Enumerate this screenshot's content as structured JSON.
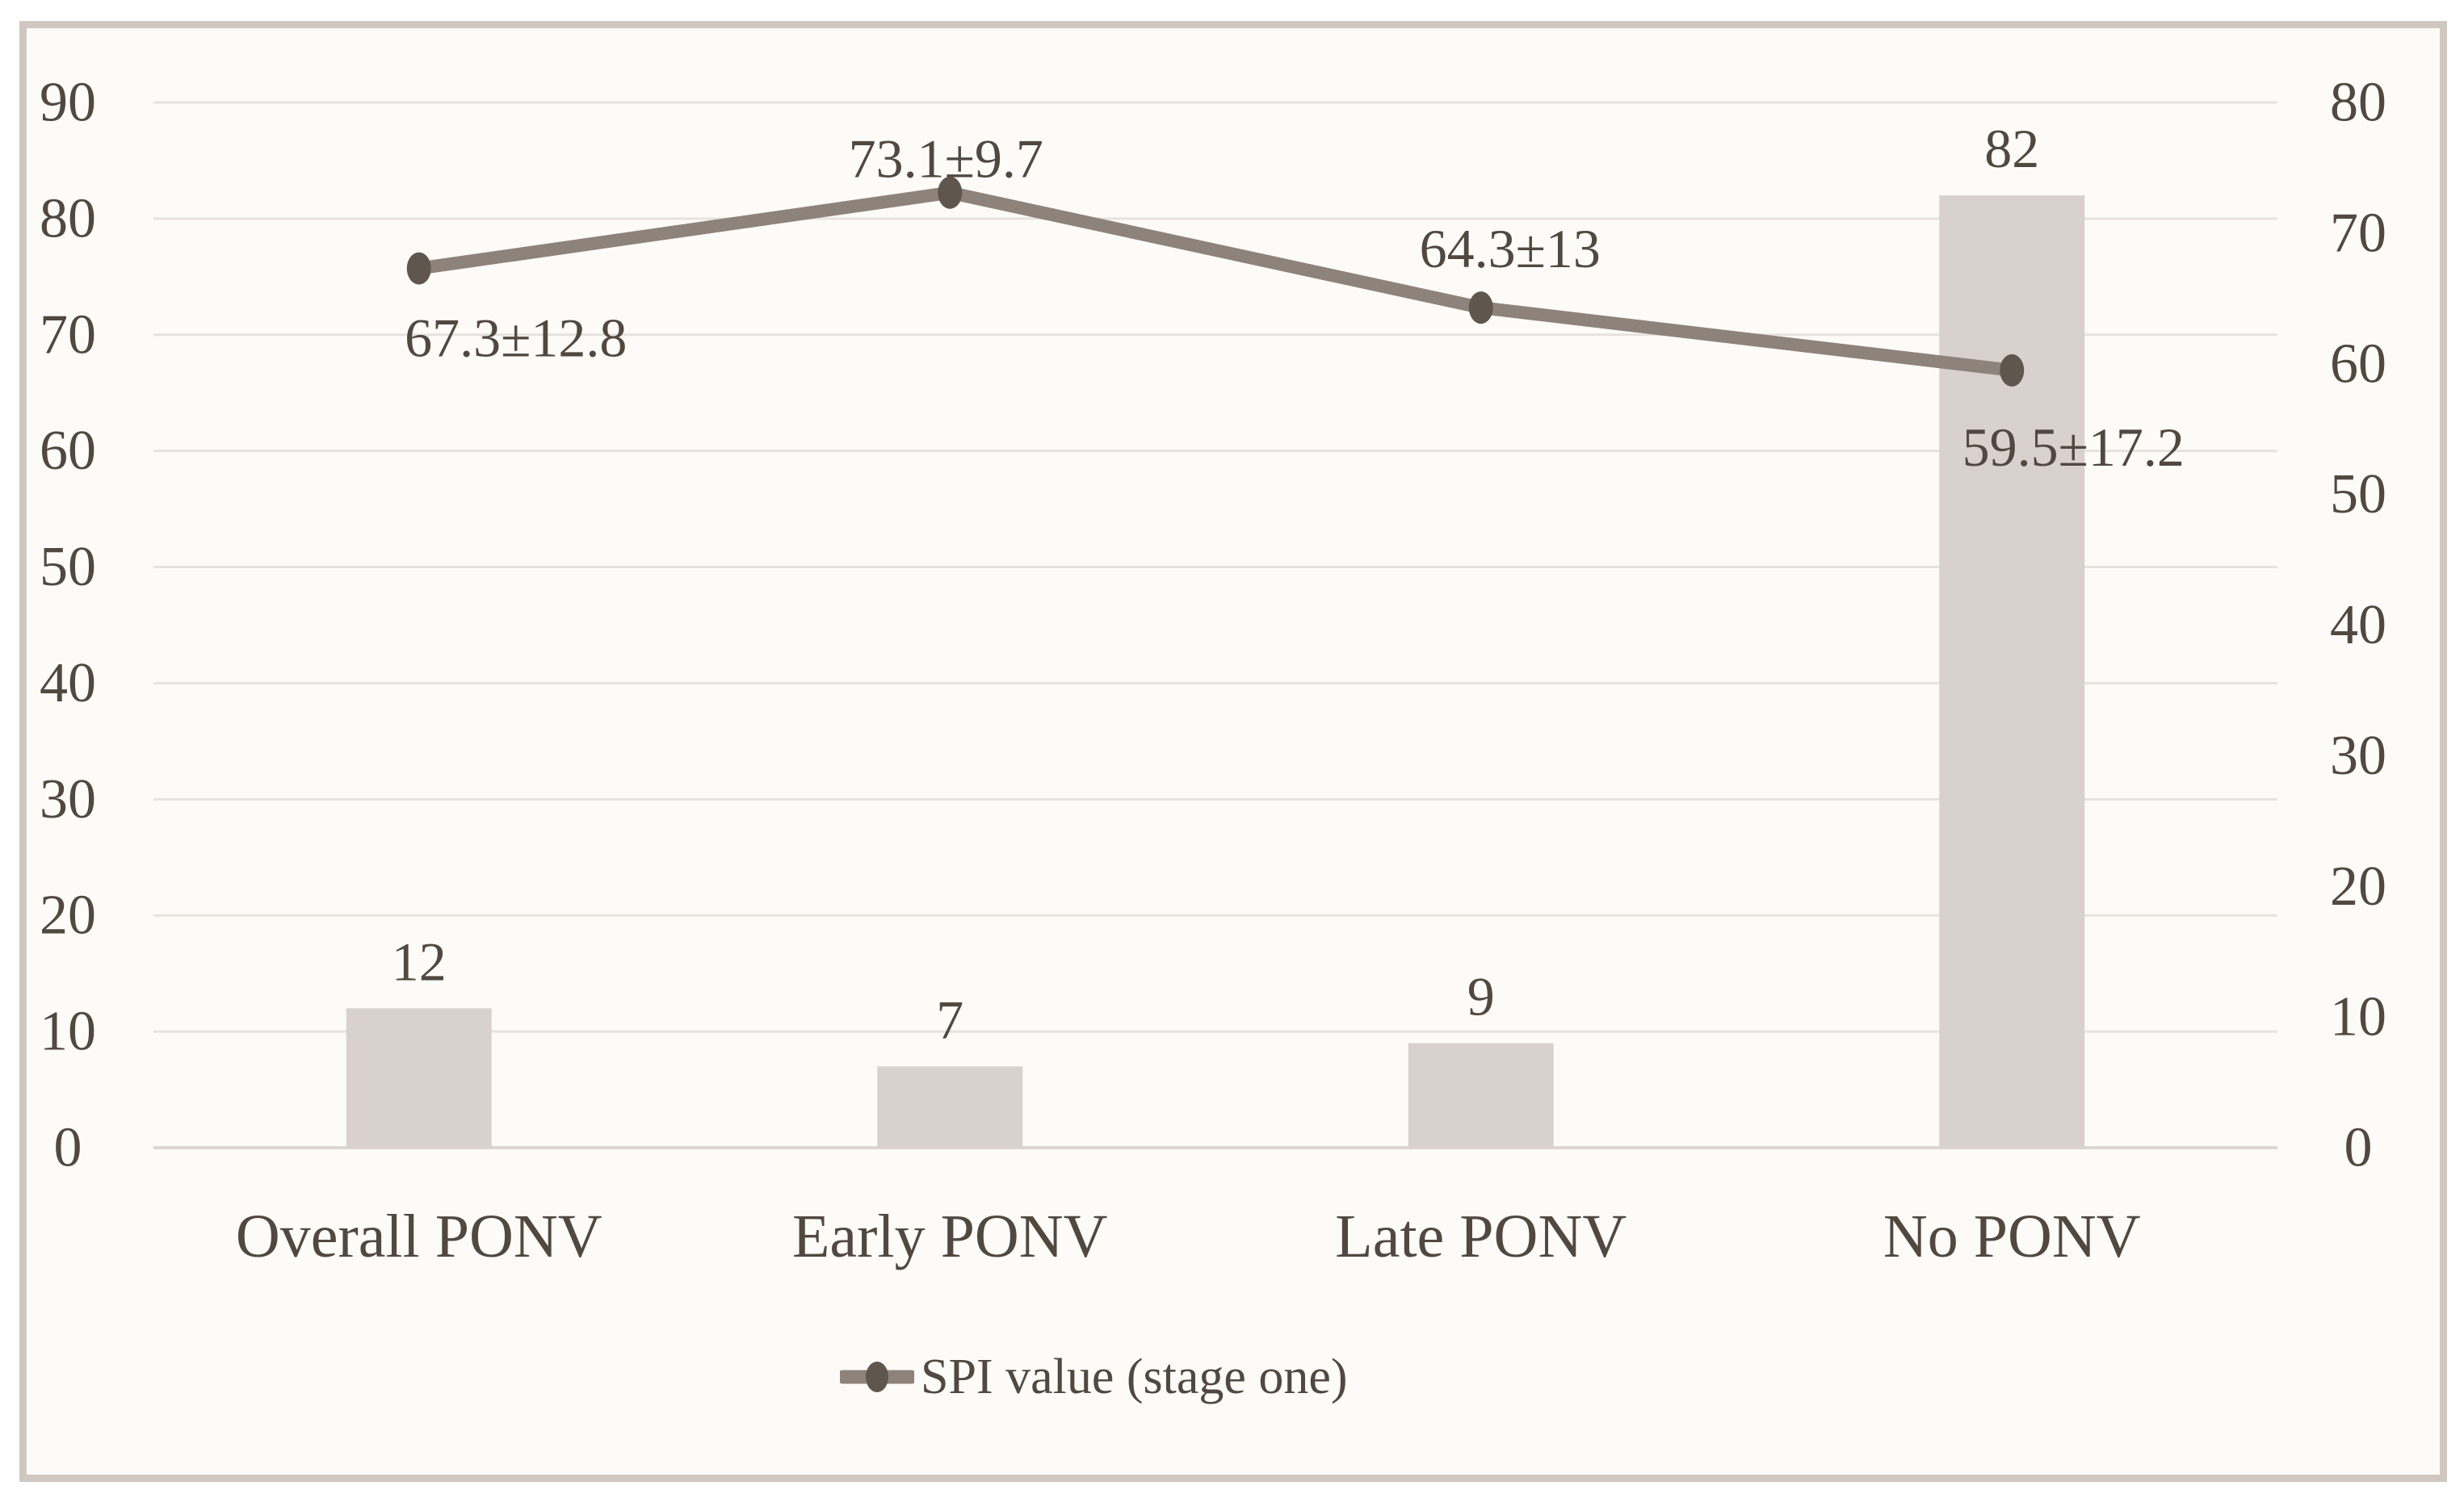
{
  "figure": {
    "background_color": "#ffffff",
    "frame": {
      "background": "#fdfbf8",
      "border_color": "#cfc7c0"
    }
  },
  "chart_data": {
    "type": "combo",
    "combo_types": [
      "bar",
      "line"
    ],
    "categories": [
      "Overall PONV",
      "Early PONV",
      "Late PONV",
      "No PONV"
    ],
    "series": [
      {
        "type": "bar",
        "axis": "left",
        "values": [
          12,
          7,
          9,
          82
        ],
        "data_labels": [
          "12",
          "7",
          "9",
          "82"
        ],
        "color": "#d8d1cd"
      },
      {
        "type": "line",
        "name": "SPI value (stage one)",
        "axis": "right",
        "values": [
          67.3,
          73.1,
          64.3,
          59.5
        ],
        "data_labels": [
          "67.3±12.8",
          "73.1±9.7",
          "64.3±13",
          "59.5±17.2"
        ],
        "color": "#8d837b",
        "marker_color": "#5f564e"
      }
    ],
    "left_axis": {
      "min": 0,
      "max": 90,
      "step": 10,
      "tick_labels": [
        "0",
        "10",
        "20",
        "30",
        "40",
        "50",
        "60",
        "70",
        "80",
        "90"
      ]
    },
    "right_axis": {
      "min": 0,
      "max": 80,
      "step": 10,
      "tick_labels": [
        "0",
        "10",
        "20",
        "30",
        "40",
        "50",
        "60",
        "70",
        "80"
      ]
    },
    "gridlines": {
      "show": true,
      "orientation": "horizontal",
      "color": "#e8e2dd",
      "baseline_color": "#ddd6d0"
    },
    "legend": {
      "position": "bottom",
      "entries": [
        {
          "label": "SPI value (stage one)",
          "marker": "line-with-dot"
        }
      ]
    },
    "text_color": "#51483f"
  }
}
